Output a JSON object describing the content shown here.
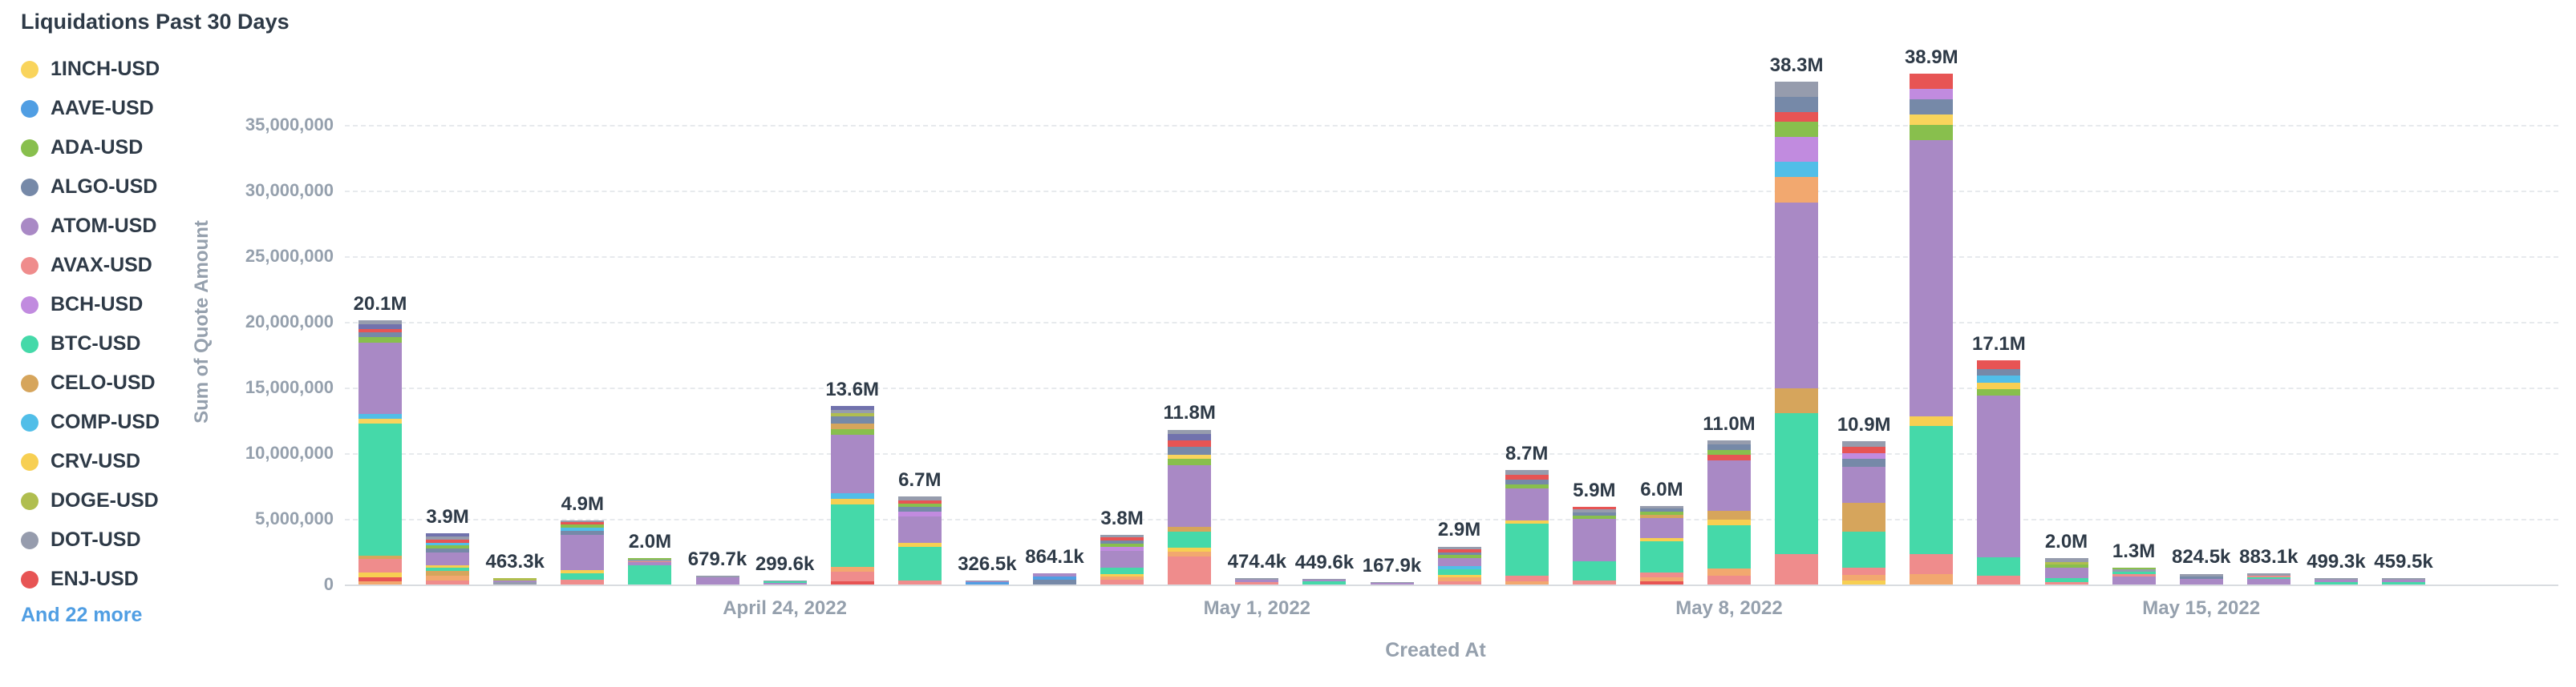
{
  "title": "Liquidations Past 30 Days",
  "legend": {
    "items": [
      {
        "label": "1INCH-USD",
        "color": "#F9D45C"
      },
      {
        "label": "AAVE-USD",
        "color": "#509EE3"
      },
      {
        "label": "ADA-USD",
        "color": "#88BF4D"
      },
      {
        "label": "ALGO-USD",
        "color": "#7689A8"
      },
      {
        "label": "ATOM-USD",
        "color": "#A989C5"
      },
      {
        "label": "AVAX-USD",
        "color": "#EF8C8C"
      },
      {
        "label": "BCH-USD",
        "color": "#C18BDF"
      },
      {
        "label": "BTC-USD",
        "color": "#45D9A9"
      },
      {
        "label": "CELO-USD",
        "color": "#D6A55C"
      },
      {
        "label": "COMP-USD",
        "color": "#51BEE8"
      },
      {
        "label": "CRV-USD",
        "color": "#F7CF52"
      },
      {
        "label": "DOGE-USD",
        "color": "#B0BE4F"
      },
      {
        "label": "DOT-USD",
        "color": "#969CAD"
      },
      {
        "label": "ENJ-USD",
        "color": "#E75454"
      }
    ],
    "more_label": "And 22 more"
  },
  "chart_data": {
    "type": "bar",
    "stacked": true,
    "title": "Liquidations Past 30 Days",
    "xlabel": "Created At",
    "ylabel": "Sum of Quote Amount",
    "ylim": [
      0,
      40000000
    ],
    "grid": "dashed-horizontal",
    "legend_position": "left",
    "y_ticks": [
      {
        "v": 0,
        "label": "0"
      },
      {
        "v": 5000000,
        "label": "5,000,000"
      },
      {
        "v": 10000000,
        "label": "10,000,000"
      },
      {
        "v": 15000000,
        "label": "15,000,000"
      },
      {
        "v": 20000000,
        "label": "20,000,000"
      },
      {
        "v": 25000000,
        "label": "25,000,000"
      },
      {
        "v": 30000000,
        "label": "30,000,000"
      },
      {
        "v": 35000000,
        "label": "35,000,000"
      }
    ],
    "x_ticks": [
      {
        "bar_index": 6,
        "label": "April 24, 2022"
      },
      {
        "bar_index": 13,
        "label": "May 1, 2022"
      },
      {
        "bar_index": 20,
        "label": "May 8, 2022"
      },
      {
        "bar_index": 27,
        "label": "May 15, 2022"
      }
    ],
    "palette": {
      "yellow": "#F9D45C",
      "blue": "#509EE3",
      "green": "#88BF4D",
      "slate": "#7689A8",
      "purple": "#A989C5",
      "salmon": "#EF8C8C",
      "violet": "#C18BDF",
      "teal": "#45D9A9",
      "tan": "#D6A55C",
      "lightblue": "#51BEE8",
      "gold": "#F7CF52",
      "olive": "#B0BE4F",
      "gray": "#969CAD",
      "red": "#E75454",
      "orange": "#F2A86F",
      "indigo": "#7172AD"
    },
    "bars": [
      {
        "label": "20.1M",
        "value": 20100000,
        "segments": [
          [
            "orange",
            0.012
          ],
          [
            "red",
            0.015
          ],
          [
            "gold",
            0.02
          ],
          [
            "salmon",
            0.05
          ],
          [
            "tan",
            0.012
          ],
          [
            "teal",
            0.5
          ],
          [
            "yellow",
            0.02
          ],
          [
            "lightblue",
            0.018
          ],
          [
            "purple",
            0.27
          ],
          [
            "green",
            0.02
          ],
          [
            "slate",
            0.018
          ],
          [
            "red",
            0.012
          ],
          [
            "indigo",
            0.02
          ],
          [
            "gray",
            0.013
          ]
        ]
      },
      {
        "label": "3.9M",
        "value": 3900000,
        "segments": [
          [
            "salmon",
            0.08
          ],
          [
            "orange",
            0.1
          ],
          [
            "tan",
            0.09
          ],
          [
            "teal",
            0.06
          ],
          [
            "gold",
            0.05
          ],
          [
            "purple",
            0.25
          ],
          [
            "slate",
            0.08
          ],
          [
            "green",
            0.06
          ],
          [
            "lightblue",
            0.05
          ],
          [
            "red",
            0.06
          ],
          [
            "gray",
            0.06
          ],
          [
            "indigo",
            0.06
          ]
        ]
      },
      {
        "label": "463.3k",
        "value": 463300,
        "segments": [
          [
            "gray",
            0.4
          ],
          [
            "purple",
            0.3
          ],
          [
            "olive",
            0.3
          ]
        ]
      },
      {
        "label": "4.9M",
        "value": 4900000,
        "segments": [
          [
            "salmon",
            0.07
          ],
          [
            "teal",
            0.1
          ],
          [
            "gold",
            0.05
          ],
          [
            "purple",
            0.55
          ],
          [
            "slate",
            0.06
          ],
          [
            "lightblue",
            0.05
          ],
          [
            "green",
            0.05
          ],
          [
            "red",
            0.04
          ],
          [
            "gray",
            0.03
          ]
        ]
      },
      {
        "label": "2.0M",
        "value": 2000000,
        "segments": [
          [
            "teal",
            0.72
          ],
          [
            "purple",
            0.12
          ],
          [
            "salmon",
            0.05
          ],
          [
            "gray",
            0.05
          ],
          [
            "green",
            0.06
          ]
        ]
      },
      {
        "label": "679.7k",
        "value": 679700,
        "segments": [
          [
            "purple",
            0.78
          ],
          [
            "gray",
            0.22
          ]
        ]
      },
      {
        "label": "299.6k",
        "value": 299600,
        "segments": [
          [
            "purple",
            0.5
          ],
          [
            "teal",
            0.25
          ],
          [
            "gray",
            0.25
          ]
        ]
      },
      {
        "label": "13.6M",
        "value": 13600000,
        "segments": [
          [
            "red",
            0.02
          ],
          [
            "salmon",
            0.05
          ],
          [
            "orange",
            0.03
          ],
          [
            "teal",
            0.35
          ],
          [
            "gold",
            0.03
          ],
          [
            "lightblue",
            0.03
          ],
          [
            "purple",
            0.33
          ],
          [
            "green",
            0.03
          ],
          [
            "tan",
            0.03
          ],
          [
            "slate",
            0.04
          ],
          [
            "olive",
            0.02
          ],
          [
            "gray",
            0.02
          ],
          [
            "indigo",
            0.02
          ]
        ]
      },
      {
        "label": "6.7M",
        "value": 6700000,
        "segments": [
          [
            "salmon",
            0.05
          ],
          [
            "teal",
            0.38
          ],
          [
            "gold",
            0.04
          ],
          [
            "purple",
            0.3
          ],
          [
            "violet",
            0.06
          ],
          [
            "slate",
            0.05
          ],
          [
            "green",
            0.04
          ],
          [
            "red",
            0.04
          ],
          [
            "gray",
            0.04
          ]
        ]
      },
      {
        "label": "326.5k",
        "value": 326500,
        "segments": [
          [
            "blue",
            0.5
          ],
          [
            "purple",
            0.3
          ],
          [
            "gray",
            0.2
          ]
        ]
      },
      {
        "label": "864.1k",
        "value": 864100,
        "segments": [
          [
            "slate",
            0.45
          ],
          [
            "blue",
            0.25
          ],
          [
            "purple",
            0.3
          ]
        ]
      },
      {
        "label": "3.8M",
        "value": 3800000,
        "segments": [
          [
            "salmon",
            0.1
          ],
          [
            "orange",
            0.06
          ],
          [
            "gold",
            0.05
          ],
          [
            "teal",
            0.12
          ],
          [
            "purple",
            0.35
          ],
          [
            "violet",
            0.08
          ],
          [
            "green",
            0.06
          ],
          [
            "slate",
            0.06
          ],
          [
            "red",
            0.06
          ],
          [
            "gray",
            0.06
          ]
        ]
      },
      {
        "label": "11.8M",
        "value": 11800000,
        "segments": [
          [
            "salmon",
            0.18
          ],
          [
            "orange",
            0.03
          ],
          [
            "gold",
            0.03
          ],
          [
            "teal",
            0.1
          ],
          [
            "tan",
            0.03
          ],
          [
            "purple",
            0.4
          ],
          [
            "green",
            0.04
          ],
          [
            "yellow",
            0.03
          ],
          [
            "slate",
            0.05
          ],
          [
            "red",
            0.04
          ],
          [
            "indigo",
            0.04
          ],
          [
            "gray",
            0.03
          ]
        ]
      },
      {
        "label": "474.4k",
        "value": 474400,
        "segments": [
          [
            "salmon",
            0.4
          ],
          [
            "purple",
            0.35
          ],
          [
            "gray",
            0.25
          ]
        ]
      },
      {
        "label": "449.6k",
        "value": 449600,
        "segments": [
          [
            "teal",
            0.5
          ],
          [
            "purple",
            0.3
          ],
          [
            "gray",
            0.2
          ]
        ]
      },
      {
        "label": "167.9k",
        "value": 167900,
        "segments": [
          [
            "purple",
            0.6
          ],
          [
            "gray",
            0.4
          ]
        ]
      },
      {
        "label": "2.9M",
        "value": 2900000,
        "segments": [
          [
            "salmon",
            0.08
          ],
          [
            "orange",
            0.1
          ],
          [
            "gold",
            0.08
          ],
          [
            "teal",
            0.15
          ],
          [
            "lightblue",
            0.08
          ],
          [
            "purple",
            0.2
          ],
          [
            "green",
            0.08
          ],
          [
            "slate",
            0.08
          ],
          [
            "red",
            0.08
          ],
          [
            "gray",
            0.07
          ]
        ]
      },
      {
        "label": "8.7M",
        "value": 8700000,
        "segments": [
          [
            "orange",
            0.03
          ],
          [
            "salmon",
            0.05
          ],
          [
            "teal",
            0.45
          ],
          [
            "gold",
            0.03
          ],
          [
            "purple",
            0.28
          ],
          [
            "green",
            0.04
          ],
          [
            "slate",
            0.04
          ],
          [
            "red",
            0.04
          ],
          [
            "gray",
            0.04
          ]
        ]
      },
      {
        "label": "5.9M",
        "value": 5900000,
        "segments": [
          [
            "salmon",
            0.05
          ],
          [
            "teal",
            0.25
          ],
          [
            "purple",
            0.55
          ],
          [
            "green",
            0.04
          ],
          [
            "slate",
            0.04
          ],
          [
            "gray",
            0.04
          ],
          [
            "red",
            0.03
          ]
        ]
      },
      {
        "label": "6.0M",
        "value": 6000000,
        "segments": [
          [
            "red",
            0.04
          ],
          [
            "orange",
            0.05
          ],
          [
            "salmon",
            0.06
          ],
          [
            "teal",
            0.4
          ],
          [
            "gold",
            0.04
          ],
          [
            "purple",
            0.25
          ],
          [
            "tan",
            0.05
          ],
          [
            "green",
            0.04
          ],
          [
            "slate",
            0.04
          ],
          [
            "gray",
            0.03
          ]
        ]
      },
      {
        "label": "11.0M",
        "value": 11000000,
        "segments": [
          [
            "salmon",
            0.06
          ],
          [
            "orange",
            0.05
          ],
          [
            "teal",
            0.3
          ],
          [
            "gold",
            0.04
          ],
          [
            "tan",
            0.06
          ],
          [
            "purple",
            0.35
          ],
          [
            "red",
            0.04
          ],
          [
            "green",
            0.03
          ],
          [
            "slate",
            0.04
          ],
          [
            "gray",
            0.03
          ]
        ]
      },
      {
        "label": "38.3M",
        "value": 38300000,
        "segments": [
          [
            "salmon",
            0.06
          ],
          [
            "teal",
            0.28
          ],
          [
            "tan",
            0.05
          ],
          [
            "purple",
            0.37
          ],
          [
            "orange",
            0.05
          ],
          [
            "lightblue",
            0.03
          ],
          [
            "violet",
            0.05
          ],
          [
            "green",
            0.03
          ],
          [
            "red",
            0.02
          ],
          [
            "slate",
            0.03
          ],
          [
            "gray",
            0.03
          ]
        ]
      },
      {
        "label": "10.9M",
        "value": 10900000,
        "segments": [
          [
            "gold",
            0.03
          ],
          [
            "orange",
            0.04
          ],
          [
            "salmon",
            0.05
          ],
          [
            "teal",
            0.25
          ],
          [
            "tan",
            0.2
          ],
          [
            "purple",
            0.25
          ],
          [
            "slate",
            0.06
          ],
          [
            "violet",
            0.04
          ],
          [
            "red",
            0.04
          ],
          [
            "gray",
            0.04
          ]
        ]
      },
      {
        "label": "38.9M",
        "value": 38900000,
        "segments": [
          [
            "orange",
            0.02
          ],
          [
            "salmon",
            0.04
          ],
          [
            "teal",
            0.25
          ],
          [
            "gold",
            0.02
          ],
          [
            "purple",
            0.54
          ],
          [
            "green",
            0.03
          ],
          [
            "yellow",
            0.02
          ],
          [
            "slate",
            0.03
          ],
          [
            "violet",
            0.02
          ],
          [
            "red",
            0.03
          ]
        ]
      },
      {
        "label": "17.1M",
        "value": 17100000,
        "segments": [
          [
            "salmon",
            0.04
          ],
          [
            "teal",
            0.08
          ],
          [
            "purple",
            0.72
          ],
          [
            "green",
            0.03
          ],
          [
            "gold",
            0.03
          ],
          [
            "lightblue",
            0.03
          ],
          [
            "slate",
            0.03
          ],
          [
            "red",
            0.04
          ]
        ]
      },
      {
        "label": "2.0M",
        "value": 2000000,
        "segments": [
          [
            "salmon",
            0.1
          ],
          [
            "teal",
            0.15
          ],
          [
            "purple",
            0.4
          ],
          [
            "green",
            0.1
          ],
          [
            "olive",
            0.1
          ],
          [
            "gray",
            0.15
          ]
        ]
      },
      {
        "label": "1.3M",
        "value": 1300000,
        "segments": [
          [
            "purple",
            0.45
          ],
          [
            "salmon",
            0.15
          ],
          [
            "teal",
            0.15
          ],
          [
            "gray",
            0.15
          ],
          [
            "green",
            0.1
          ]
        ]
      },
      {
        "label": "824.5k",
        "value": 824500,
        "segments": [
          [
            "purple",
            0.55
          ],
          [
            "slate",
            0.2
          ],
          [
            "gray",
            0.25
          ]
        ]
      },
      {
        "label": "883.1k",
        "value": 883100,
        "segments": [
          [
            "purple",
            0.5
          ],
          [
            "teal",
            0.15
          ],
          [
            "salmon",
            0.1
          ],
          [
            "gray",
            0.25
          ]
        ]
      },
      {
        "label": "499.3k",
        "value": 499300,
        "segments": [
          [
            "teal",
            0.4
          ],
          [
            "purple",
            0.35
          ],
          [
            "gray",
            0.25
          ]
        ]
      },
      {
        "label": "459.5k",
        "value": 459500,
        "segments": [
          [
            "teal",
            0.45
          ],
          [
            "purple",
            0.3
          ],
          [
            "gold",
            0.1
          ],
          [
            "gray",
            0.15
          ]
        ]
      }
    ]
  }
}
